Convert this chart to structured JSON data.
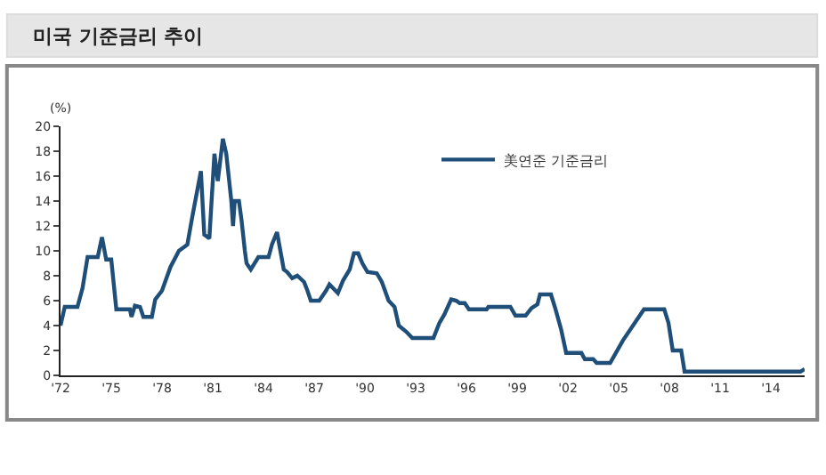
{
  "chart_data": {
    "type": "line",
    "title": "미국 기준금리 추이",
    "ylabel": "(%)",
    "x": [
      1972.0,
      1972.25,
      1973.0,
      1973.3,
      1973.6,
      1974.2,
      1974.45,
      1974.7,
      1975.0,
      1975.3,
      1976.1,
      1976.2,
      1976.4,
      1976.7,
      1976.9,
      1977.4,
      1977.6,
      1978.0,
      1978.5,
      1979.0,
      1979.5,
      1979.8,
      1980.3,
      1980.5,
      1980.8,
      1981.1,
      1981.3,
      1981.6,
      1981.8,
      1982.1,
      1982.2,
      1982.3,
      1982.55,
      1982.7,
      1982.9,
      1983.0,
      1983.25,
      1983.7,
      1984.3,
      1984.5,
      1984.8,
      1985.0,
      1985.2,
      1985.4,
      1985.7,
      1986.0,
      1986.4,
      1986.6,
      1986.8,
      1987.3,
      1987.7,
      1987.9,
      1988.4,
      1988.7,
      1989.1,
      1989.35,
      1989.6,
      1989.85,
      1990.15,
      1990.7,
      1991.0,
      1991.4,
      1991.75,
      1992.0,
      1992.45,
      1992.8,
      1994.05,
      1994.4,
      1994.7,
      1995.1,
      1995.4,
      1995.6,
      1995.9,
      1996.15,
      1997.2,
      1997.3,
      1998.6,
      1998.9,
      1999.5,
      1999.85,
      2000.2,
      2000.35,
      2001.0,
      2001.25,
      2001.6,
      2001.9,
      2002.8,
      2003.0,
      2003.5,
      2003.7,
      2004.5,
      2005.25,
      2006.5,
      2007.7,
      2007.95,
      2008.2,
      2008.7,
      2008.9,
      2015.75,
      2016.0
    ],
    "series": [
      {
        "name": "美연준 기준금리",
        "color": "#1f4e79",
        "values": [
          4.0,
          5.5,
          5.5,
          7.0,
          9.5,
          9.5,
          11.1,
          9.3,
          9.3,
          5.3,
          5.3,
          4.7,
          5.6,
          5.5,
          4.7,
          4.7,
          6.1,
          6.8,
          8.7,
          10.0,
          10.5,
          12.8,
          16.4,
          11.3,
          11.0,
          17.8,
          15.6,
          19.0,
          17.8,
          14.0,
          12.0,
          14.0,
          14.0,
          12.5,
          10.0,
          9.0,
          8.5,
          9.5,
          9.5,
          10.5,
          11.5,
          10.0,
          8.5,
          8.3,
          7.8,
          8.0,
          7.5,
          6.8,
          6.0,
          6.0,
          6.8,
          7.3,
          6.6,
          7.6,
          8.5,
          9.8,
          9.8,
          9.0,
          8.3,
          8.2,
          7.5,
          6.0,
          5.5,
          4.0,
          3.5,
          3.0,
          3.0,
          4.2,
          4.9,
          6.1,
          6.0,
          5.8,
          5.8,
          5.3,
          5.3,
          5.5,
          5.5,
          4.8,
          4.8,
          5.4,
          5.7,
          6.5,
          6.5,
          5.4,
          3.7,
          1.8,
          1.8,
          1.3,
          1.3,
          1.0,
          1.0,
          2.8,
          5.3,
          5.3,
          4.2,
          2.0,
          2.0,
          0.3,
          0.3,
          0.5
        ]
      }
    ],
    "xlim": [
      1972,
      2016
    ],
    "xticks": [
      {
        "value": 1972,
        "label": "'72"
      },
      {
        "value": 1975,
        "label": "'75"
      },
      {
        "value": 1978,
        "label": "'78"
      },
      {
        "value": 1981,
        "label": "'81"
      },
      {
        "value": 1984,
        "label": "'84"
      },
      {
        "value": 1987,
        "label": "'87"
      },
      {
        "value": 1990,
        "label": "'90"
      },
      {
        "value": 1993,
        "label": "'93"
      },
      {
        "value": 1996,
        "label": "'96"
      },
      {
        "value": 1999,
        "label": "'99"
      },
      {
        "value": 2002,
        "label": "'02"
      },
      {
        "value": 2005,
        "label": "'05"
      },
      {
        "value": 2008,
        "label": "'08"
      },
      {
        "value": 2011,
        "label": "'11"
      },
      {
        "value": 2014,
        "label": "'14"
      }
    ],
    "ylim": [
      0,
      20
    ],
    "yticks": [
      0,
      2,
      4,
      6,
      8,
      10,
      12,
      14,
      16,
      18,
      20
    ],
    "legend": "top right",
    "marker": "none",
    "line_style": "solid"
  }
}
